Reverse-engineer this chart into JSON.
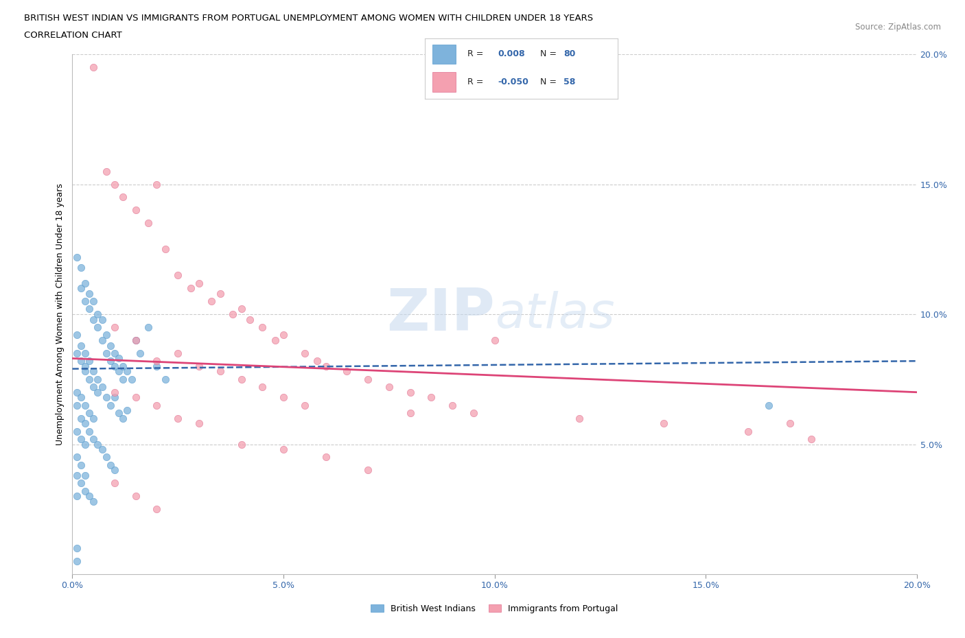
{
  "title_line1": "BRITISH WEST INDIAN VS IMMIGRANTS FROM PORTUGAL UNEMPLOYMENT AMONG WOMEN WITH CHILDREN UNDER 18 YEARS",
  "title_line2": "CORRELATION CHART",
  "source_text": "Source: ZipAtlas.com",
  "ylabel": "Unemployment Among Women with Children Under 18 years",
  "xlim": [
    0.0,
    0.2
  ],
  "ylim": [
    0.0,
    0.2
  ],
  "xtick_labels": [
    "0.0%",
    "5.0%",
    "10.0%",
    "15.0%",
    "20.0%"
  ],
  "xtick_vals": [
    0.0,
    0.05,
    0.1,
    0.15,
    0.2
  ],
  "ytick_labels": [
    "5.0%",
    "10.0%",
    "15.0%",
    "20.0%"
  ],
  "ytick_vals_right": [
    0.05,
    0.1,
    0.15,
    0.2
  ],
  "watermark_zip": "ZIP",
  "watermark_atlas": "atlas",
  "blue_R": "0.008",
  "blue_N": "80",
  "pink_R": "-0.050",
  "pink_N": "58",
  "blue_color": "#7EB3DC",
  "pink_color": "#F4A0B0",
  "blue_edge_color": "#5599CC",
  "pink_edge_color": "#E07090",
  "blue_line_color": "#3366AA",
  "pink_line_color": "#DD4477",
  "grid_color": "#CCCCCC",
  "blue_label": "British West Indians",
  "pink_label": "Immigrants from Portugal",
  "blue_trend_x0": 0.0,
  "blue_trend_y0": 0.079,
  "blue_trend_x1": 0.2,
  "blue_trend_y1": 0.082,
  "pink_trend_x0": 0.0,
  "pink_trend_y0": 0.083,
  "pink_trend_x1": 0.2,
  "pink_trend_y1": 0.07,
  "blue_x": [
    0.001,
    0.002,
    0.002,
    0.003,
    0.003,
    0.004,
    0.004,
    0.005,
    0.005,
    0.006,
    0.006,
    0.007,
    0.007,
    0.008,
    0.008,
    0.009,
    0.009,
    0.01,
    0.01,
    0.011,
    0.011,
    0.012,
    0.012,
    0.013,
    0.014,
    0.015,
    0.016,
    0.018,
    0.02,
    0.022,
    0.001,
    0.001,
    0.002,
    0.002,
    0.003,
    0.003,
    0.003,
    0.004,
    0.004,
    0.005,
    0.005,
    0.006,
    0.006,
    0.007,
    0.008,
    0.009,
    0.01,
    0.011,
    0.012,
    0.013,
    0.001,
    0.002,
    0.003,
    0.004,
    0.005,
    0.006,
    0.007,
    0.008,
    0.009,
    0.01,
    0.001,
    0.002,
    0.003,
    0.004,
    0.005,
    0.001,
    0.002,
    0.003,
    0.004,
    0.005,
    0.001,
    0.002,
    0.003,
    0.001,
    0.002,
    0.003,
    0.001,
    0.001,
    0.165,
    0.001
  ],
  "blue_y": [
    0.122,
    0.118,
    0.11,
    0.112,
    0.105,
    0.108,
    0.102,
    0.105,
    0.098,
    0.1,
    0.095,
    0.098,
    0.09,
    0.092,
    0.085,
    0.088,
    0.082,
    0.085,
    0.08,
    0.083,
    0.078,
    0.08,
    0.075,
    0.078,
    0.075,
    0.09,
    0.085,
    0.095,
    0.08,
    0.075,
    0.092,
    0.085,
    0.088,
    0.082,
    0.085,
    0.08,
    0.078,
    0.082,
    0.075,
    0.078,
    0.072,
    0.075,
    0.07,
    0.072,
    0.068,
    0.065,
    0.068,
    0.062,
    0.06,
    0.063,
    0.065,
    0.06,
    0.058,
    0.055,
    0.052,
    0.05,
    0.048,
    0.045,
    0.042,
    0.04,
    0.038,
    0.035,
    0.032,
    0.03,
    0.028,
    0.07,
    0.068,
    0.065,
    0.062,
    0.06,
    0.055,
    0.052,
    0.05,
    0.045,
    0.042,
    0.038,
    0.03,
    0.01,
    0.065,
    0.005
  ],
  "pink_x": [
    0.005,
    0.008,
    0.01,
    0.012,
    0.015,
    0.018,
    0.02,
    0.022,
    0.025,
    0.028,
    0.03,
    0.033,
    0.035,
    0.038,
    0.04,
    0.042,
    0.045,
    0.048,
    0.05,
    0.055,
    0.058,
    0.06,
    0.065,
    0.07,
    0.075,
    0.08,
    0.085,
    0.09,
    0.095,
    0.1,
    0.01,
    0.015,
    0.02,
    0.025,
    0.03,
    0.035,
    0.04,
    0.045,
    0.05,
    0.055,
    0.01,
    0.015,
    0.02,
    0.025,
    0.03,
    0.04,
    0.05,
    0.06,
    0.07,
    0.08,
    0.12,
    0.14,
    0.16,
    0.17,
    0.175,
    0.01,
    0.015,
    0.02
  ],
  "pink_y": [
    0.195,
    0.155,
    0.15,
    0.145,
    0.14,
    0.135,
    0.15,
    0.125,
    0.115,
    0.11,
    0.112,
    0.105,
    0.108,
    0.1,
    0.102,
    0.098,
    0.095,
    0.09,
    0.092,
    0.085,
    0.082,
    0.08,
    0.078,
    0.075,
    0.072,
    0.07,
    0.068,
    0.065,
    0.062,
    0.09,
    0.095,
    0.09,
    0.082,
    0.085,
    0.08,
    0.078,
    0.075,
    0.072,
    0.068,
    0.065,
    0.07,
    0.068,
    0.065,
    0.06,
    0.058,
    0.05,
    0.048,
    0.045,
    0.04,
    0.062,
    0.06,
    0.058,
    0.055,
    0.058,
    0.052,
    0.035,
    0.03,
    0.025
  ]
}
